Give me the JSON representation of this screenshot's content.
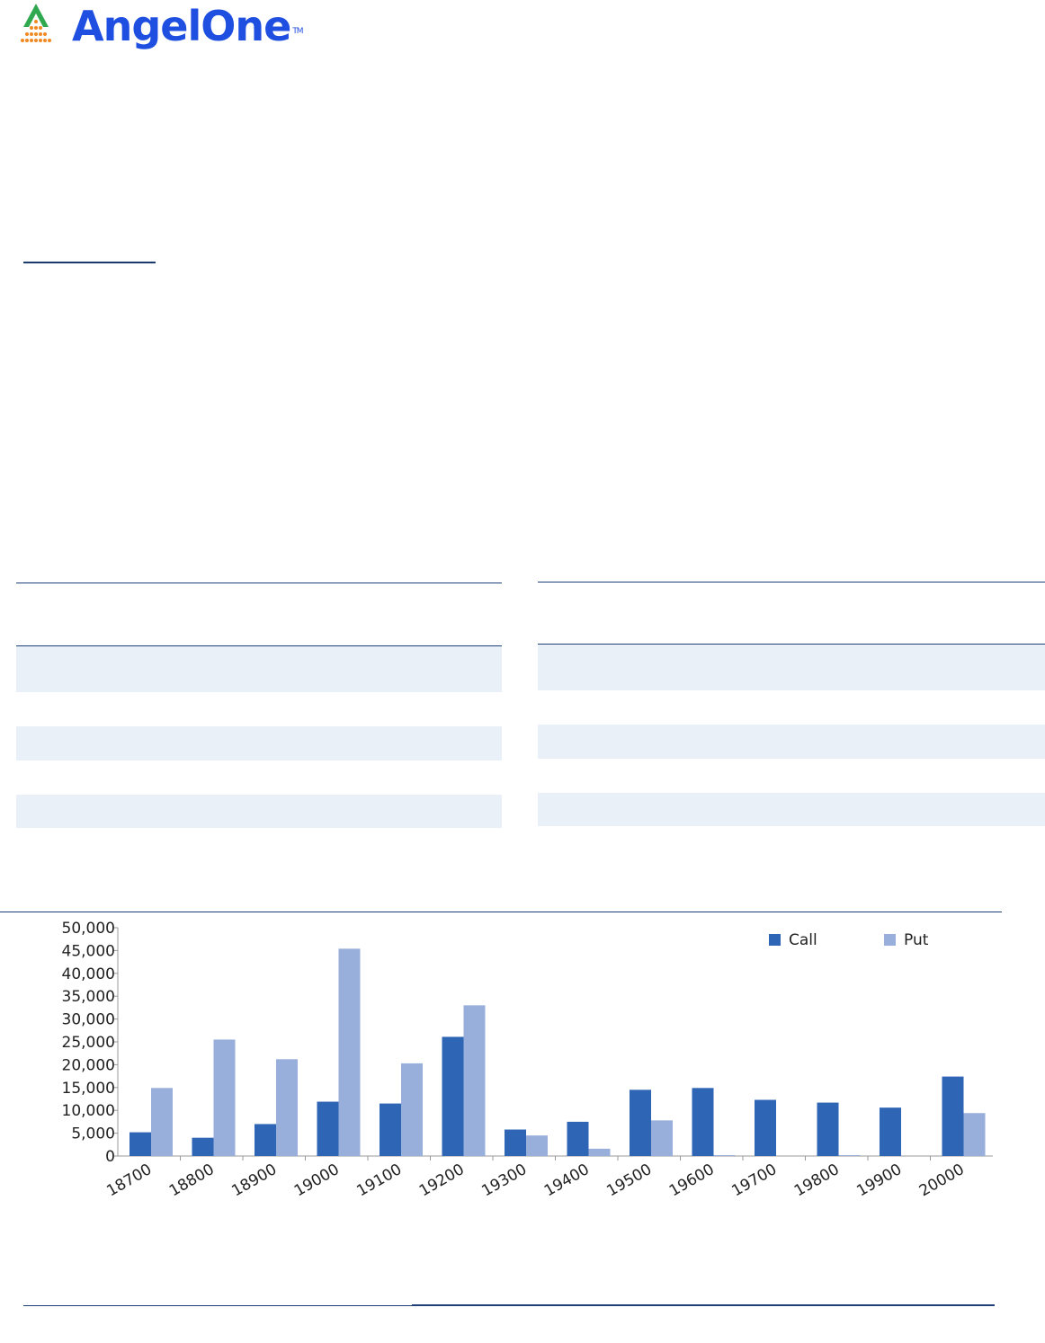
{
  "brand": {
    "name_part1": "Angel",
    "name_part2": "One",
    "trademark": "TM",
    "name_color": "#1f4fe0",
    "mark_color_top": "#2fa84f",
    "mark_color_bottom": "#f08a24",
    "logo_icon": "pyramid-logo-icon"
  },
  "colors": {
    "rule": "#1f3f7a",
    "band": "#e9f0f8",
    "call": "#2e65b4",
    "put": "#98aedb"
  },
  "chart_data": {
    "type": "bar",
    "categories": [
      "18700",
      "18800",
      "18900",
      "19000",
      "19100",
      "19200",
      "19300",
      "19400",
      "19500",
      "19600",
      "19700",
      "19800",
      "19900",
      "20000"
    ],
    "series": [
      {
        "name": "Call",
        "values": [
          5200,
          4000,
          7000,
          11900,
          11500,
          26100,
          5800,
          7500,
          14500,
          14900,
          12300,
          11700,
          10600,
          17400
        ]
      },
      {
        "name": "Put",
        "values": [
          14900,
          25500,
          21200,
          45400,
          20300,
          33000,
          4500,
          1600,
          7800,
          200,
          0,
          200,
          0,
          9400
        ]
      }
    ],
    "yticks": [
      "50,000",
      "45,000",
      "40,000",
      "35,000",
      "30,000",
      "25,000",
      "20,000",
      "15,000",
      "10,000",
      "5,000",
      "0"
    ],
    "ylim": [
      0,
      50000
    ],
    "grid": false,
    "legend": "top-right"
  }
}
